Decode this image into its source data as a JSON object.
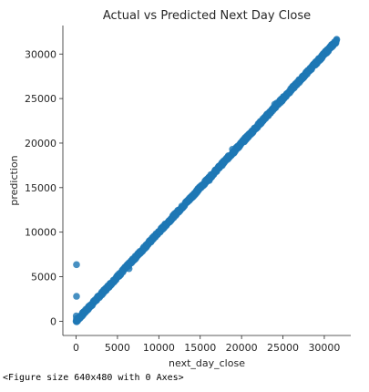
{
  "caption": "<Figure size 640x480 with 0 Axes>",
  "chart_data": {
    "type": "scatter",
    "title": "Actual vs Predicted Next Day Close",
    "xlabel": "next_day_close",
    "ylabel": "prediction",
    "xlim": [
      -1600,
      33200
    ],
    "ylim": [
      -1600,
      33200
    ],
    "x_ticks": [
      0,
      5000,
      10000,
      15000,
      20000,
      25000,
      30000
    ],
    "y_ticks": [
      0,
      5000,
      10000,
      15000,
      20000,
      25000,
      30000
    ],
    "grid": false,
    "point_color": "#1f77b4",
    "trend": {
      "x_start": 0,
      "x_end": 31500,
      "slope": 1.0
    },
    "outliers": [
      {
        "x": 50,
        "y": 6350
      },
      {
        "x": 50,
        "y": 2800
      },
      {
        "x": 20,
        "y": 600
      },
      {
        "x": 40,
        "y": 300
      }
    ],
    "clusters": [
      {
        "x": 6400,
        "y": 5900
      },
      {
        "x": 6600,
        "y": 6500
      },
      {
        "x": 16100,
        "y": 15800
      },
      {
        "x": 16400,
        "y": 16200
      },
      {
        "x": 18900,
        "y": 19300
      },
      {
        "x": 19100,
        "y": 18900
      },
      {
        "x": 24000,
        "y": 24350
      },
      {
        "x": 24250,
        "y": 24500
      }
    ]
  }
}
